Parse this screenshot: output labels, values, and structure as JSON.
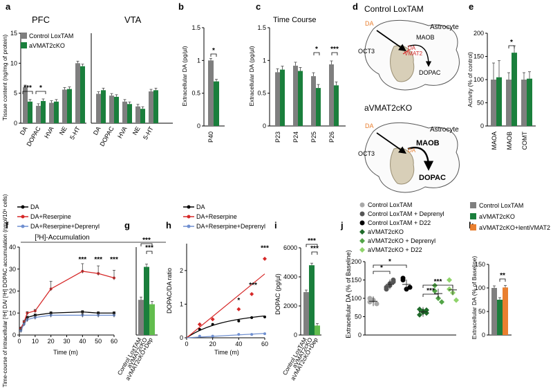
{
  "colors": {
    "grey": "#7f7f7f",
    "green": "#1a7f3c",
    "lgreen": "#62bd4d",
    "orange": "#e97f2f",
    "black": "#000000",
    "red": "#d62828",
    "blue": "#6f8fd0",
    "dgreen": "#1f6b2a",
    "midgreen": "#52a447",
    "lightgreen": "#8fd36b",
    "lightgrey": "#a8a8a8",
    "darkgrey": "#555555"
  },
  "panel_letters": [
    "a",
    "b",
    "c",
    "d",
    "e",
    "f",
    "g",
    "h",
    "i",
    "j",
    "k"
  ],
  "legend_top": [
    "Control LoxTAM",
    "aVMAT2cKO"
  ],
  "legend_f": [
    "DA",
    "DA+Reserpine",
    "DA+Reserpine+Deprenyl"
  ],
  "legend_j": [
    "Control LoxTAM",
    "Control LoxTAM + Deprenyl",
    "Control LoxTAM + D22",
    "aVMAT2cKO",
    "aVMAT2cKO + Deprenyl",
    "aVMAT2cKO + D22"
  ],
  "legend_k": [
    "Control LoxTAM",
    "aVMAT2cKO",
    "aVMAT2cKO+lentiVMAT2"
  ],
  "accum_label": "[³H]-Accumulation",
  "panel_d": {
    "title_top": "Control LoxTAM",
    "title_bottom": "aVMAT2cKO",
    "astrocyte": "Astrocyte",
    "da": "DA",
    "maob": "MAOB",
    "oct3": "OCT3",
    "dopac": "DOPAC",
    "vmat2": "VMAT2"
  },
  "chart_data": [
    {
      "panel": "a",
      "type": "bar",
      "regions": [
        "PFC",
        "VTA"
      ],
      "categories": [
        "DA",
        "DOPAC",
        "HVA",
        "NE",
        "5-HT"
      ],
      "ylabel": "Tissue content  (ng/mg of protein)",
      "ylim": [
        0,
        15
      ],
      "yticks": [
        0,
        5,
        10,
        15
      ],
      "series": [
        {
          "name": "Control LoxTAM",
          "PFC": [
            6.0,
            2.9,
            3.4,
            5.6,
            10.0
          ],
          "VTA": [
            4.9,
            4.6,
            3.6,
            2.8,
            5.3
          ]
        },
        {
          "name": "aVMAT2cKO",
          "PFC": [
            3.6,
            3.7,
            3.6,
            5.7,
            9.5
          ],
          "VTA": [
            5.5,
            4.4,
            3.2,
            2.4,
            5.5
          ]
        }
      ],
      "significance": [
        "***",
        "*"
      ]
    },
    {
      "panel": "b",
      "type": "bar",
      "categories": [
        "P40"
      ],
      "ylabel": "Extracellular DA (pg/µl)",
      "ylim": [
        0,
        1.5
      ],
      "yticks": [
        0,
        0.5,
        1,
        1.5
      ],
      "ytick_labels": [
        "0",
        "0.5",
        "1",
        "1.5"
      ],
      "series": [
        {
          "name": "Control LoxTAM",
          "values": [
            1.0
          ]
        },
        {
          "name": "aVMAT2cKO",
          "values": [
            0.68
          ]
        }
      ],
      "significance": [
        "*"
      ]
    },
    {
      "panel": "c",
      "type": "bar",
      "title": "Time Course",
      "categories": [
        "P23",
        "P24",
        "P25",
        "P26"
      ],
      "ylabel": "Extracellular DA (pg/µl)",
      "ylim": [
        0,
        1.5
      ],
      "yticks": [
        0,
        0.5,
        1,
        1.5
      ],
      "ytick_labels": [
        "0",
        "0.5",
        "1",
        "1.5"
      ],
      "series": [
        {
          "name": "Control LoxTAM",
          "values": [
            0.82,
            0.92,
            0.76,
            0.94
          ]
        },
        {
          "name": "aVMAT2cKO",
          "values": [
            0.86,
            0.84,
            0.58,
            0.62
          ]
        }
      ],
      "significance": [
        "*",
        "***"
      ]
    },
    {
      "panel": "e",
      "type": "bar",
      "categories": [
        "MAOA",
        "MAOB",
        "COMT"
      ],
      "ylabel": "Activity (% of control)",
      "ylim": [
        0,
        200
      ],
      "yticks": [
        0,
        50,
        100,
        150,
        200
      ],
      "series": [
        {
          "name": "Control LoxTAM",
          "values": [
            100,
            100,
            100
          ]
        },
        {
          "name": "aVMAT2cKO",
          "values": [
            105,
            158,
            102
          ]
        }
      ],
      "significance": [
        "*"
      ]
    },
    {
      "panel": "f",
      "type": "line",
      "xlabel": "Time (m)",
      "ylabel": "Time-course of intracellular [³H] DA/ [³H] DOPAC accumulation (nmol/10⁶ cells)",
      "xlim": [
        0,
        60
      ],
      "ylim": [
        0,
        40
      ],
      "xticks": [
        0,
        10,
        20,
        30,
        40,
        50,
        60
      ],
      "yticks": [
        0,
        10,
        20,
        30,
        40
      ],
      "x": [
        1,
        3,
        5,
        10,
        20,
        40,
        50,
        60
      ],
      "series": [
        {
          "name": "DA",
          "values": [
            3,
            6,
            8,
            9,
            10,
            10.5,
            10,
            10
          ]
        },
        {
          "name": "DA+Reserpine",
          "values": [
            3,
            6,
            10,
            11,
            21,
            29,
            28,
            26
          ]
        },
        {
          "name": "DA+Reserpine+Deprenyl",
          "values": [
            2,
            5,
            7,
            8,
            9,
            9,
            9,
            9
          ]
        }
      ],
      "significance": [
        "***",
        "***",
        "***"
      ]
    },
    {
      "panel": "g",
      "type": "bar",
      "categories": [
        "Control LoxTAM",
        "aVMAT2cKO",
        "aVMAT2cKO+Dep"
      ],
      "ylim": [
        0,
        40
      ],
      "values": [
        16,
        31,
        14
      ],
      "significance": [
        "***",
        "***"
      ]
    },
    {
      "panel": "h",
      "type": "line",
      "xlabel": "Time (m)",
      "ylabel": "DOPAC/DA ratio",
      "xlim": [
        0,
        60
      ],
      "ylim": [
        0,
        2.8
      ],
      "xticks": [
        0,
        20,
        40,
        60
      ],
      "yticks": [
        0,
        1,
        2
      ],
      "x": [
        10,
        20,
        40,
        50,
        60
      ],
      "series": [
        {
          "name": "DA",
          "values": [
            0.25,
            0.4,
            0.5,
            0.6,
            0.62
          ]
        },
        {
          "name": "DA+Reserpine",
          "values": [
            0.4,
            0.55,
            0.85,
            1.3,
            2.35
          ]
        },
        {
          "name": "DA+Reserpine+Deprenyl",
          "values": [
            0.05,
            0.05,
            0.1,
            0.1,
            0.12
          ]
        }
      ],
      "significance": [
        "*",
        "***",
        "***"
      ]
    },
    {
      "panel": "i",
      "type": "bar",
      "categories": [
        "Control LoxTAM",
        "aVMAT2cKO",
        "aVMAT2cKO+Dep"
      ],
      "ylabel": "DOPAC (pg/µl)",
      "ylim": [
        0,
        6000
      ],
      "yticks": [
        0,
        2000,
        4000,
        6000
      ],
      "values": [
        2950,
        4800,
        650
      ],
      "significance": [
        "***",
        "***"
      ]
    },
    {
      "panel": "j",
      "type": "scatter",
      "ylabel": "Extracellular DA (% of Baseline)",
      "ylim": [
        0,
        200
      ],
      "yticks": [
        0,
        50,
        100,
        150,
        200
      ],
      "series": [
        {
          "name": "Control LoxTAM",
          "values": [
            90,
            95,
            85,
            100
          ],
          "mean": 92
        },
        {
          "name": "Control LoxTAM + Deprenyl",
          "values": [
            130,
            140,
            145,
            125,
            135,
            150
          ],
          "mean": 138
        },
        {
          "name": "Control LoxTAM + D22",
          "values": [
            155,
            125,
            130,
            150
          ],
          "mean": 138
        },
        {
          "name": "aVMAT2cKO",
          "values": [
            70,
            65,
            60,
            55,
            62,
            68
          ],
          "mean": 63
        },
        {
          "name": "aVMAT2cKO + Deprenyl",
          "values": [
            135,
            100,
            90,
            120
          ],
          "mean": 113
        },
        {
          "name": "aVMAT2cKO + D22",
          "values": [
            150,
            115,
            95,
            125
          ],
          "mean": 123
        }
      ],
      "significance": [
        "*",
        "*",
        "***",
        "***"
      ]
    },
    {
      "panel": "k",
      "type": "bar",
      "categories": [
        "Control LoxTAM",
        "aVMAT2cKO",
        "aVMAT2cKO+lentiVMAT2"
      ],
      "ylabel": "Extracellular  DA (% of Baseline)",
      "ylim": [
        0,
        150
      ],
      "yticks": [
        0,
        50,
        100,
        150
      ],
      "values": [
        100,
        75,
        101
      ],
      "significance": [
        "**"
      ]
    }
  ]
}
